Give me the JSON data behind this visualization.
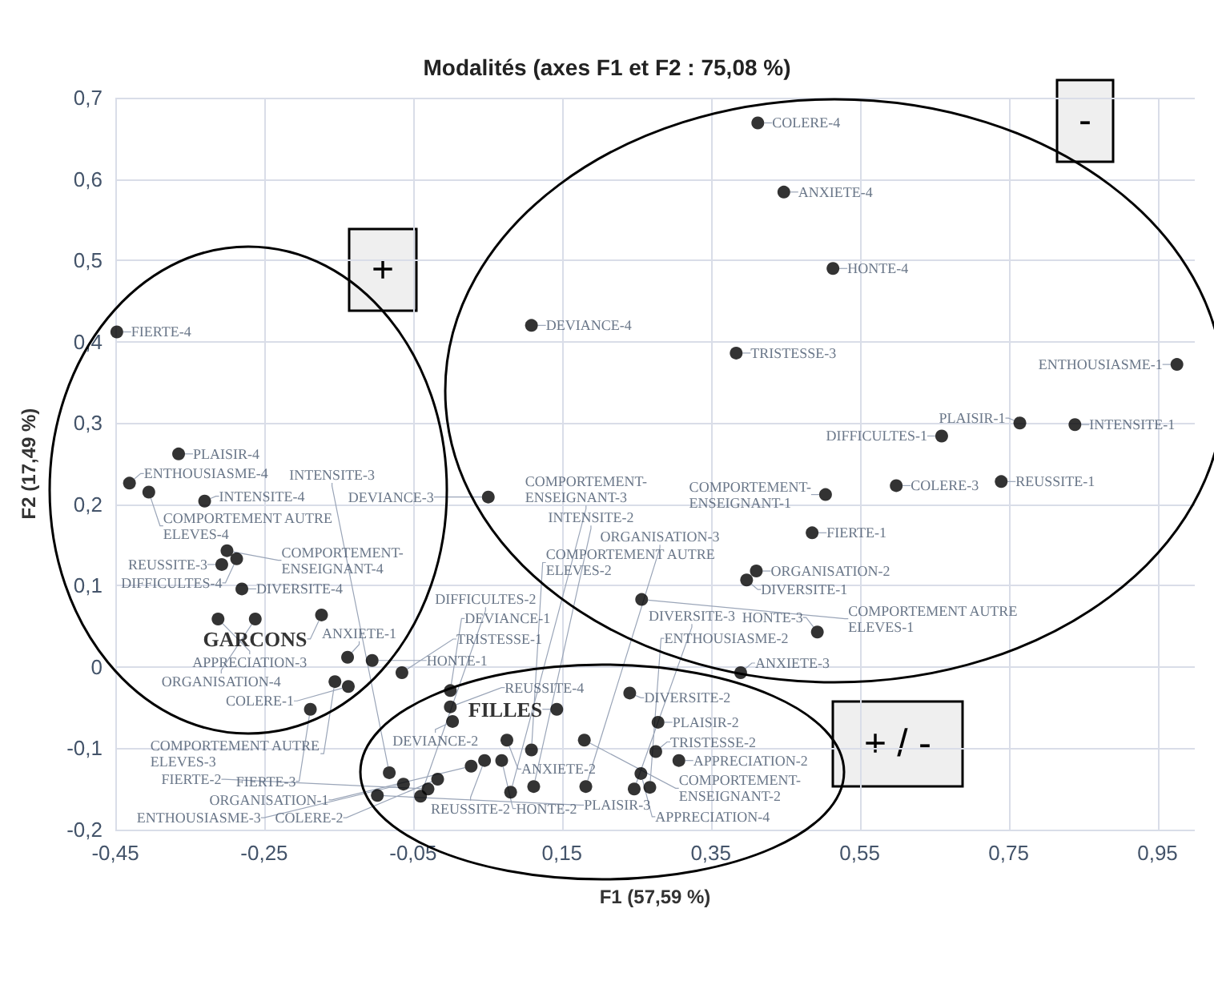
{
  "chart_data": {
    "type": "scatter",
    "title": "Modalités (axes F1 et F2 : 75,08 %)",
    "xlabel": "F1 (57,59 %)",
    "ylabel": "F2 (17,49 %)",
    "xlim": [
      -0.45,
      1.0
    ],
    "ylim": [
      -0.2,
      0.7
    ],
    "xticks": [
      {
        "value": -0.45,
        "label": "-0,45"
      },
      {
        "value": -0.25,
        "label": "-0,25"
      },
      {
        "value": -0.05,
        "label": "-0,05"
      },
      {
        "value": 0.15,
        "label": "0,15"
      },
      {
        "value": 0.35,
        "label": "0,35"
      },
      {
        "value": 0.55,
        "label": "0,55"
      },
      {
        "value": 0.75,
        "label": "0,75"
      },
      {
        "value": 0.95,
        "label": "0,95"
      }
    ],
    "yticks": [
      {
        "value": -0.2,
        "label": "-0,2"
      },
      {
        "value": -0.1,
        "label": "-0,1"
      },
      0,
      {
        "value": 0.1,
        "label": "0,1"
      },
      {
        "value": 0.2,
        "label": "0,2"
      },
      {
        "value": 0.3,
        "label": "0,3"
      },
      {
        "value": 0.4,
        "label": "0,4"
      },
      {
        "value": 0.5,
        "label": "0,5"
      },
      {
        "value": 0.6,
        "label": "0,6"
      },
      {
        "value": 0.7,
        "label": "0,7"
      }
    ],
    "grid": true,
    "marker": "circle",
    "series": [
      {
        "type": "scatter",
        "color": "#000000",
        "x": [
          -0.448,
          -0.365,
          -0.431,
          -0.405,
          -0.33,
          -0.3,
          -0.287,
          -0.307,
          -0.28,
          -0.312,
          -0.262,
          -0.138,
          -0.105,
          -0.065,
          -0.155,
          -0.137,
          -0.188,
          0.0,
          0.0,
          0.003,
          0.241,
          0.39,
          0.279,
          0.076,
          0.18,
          0.109,
          0.069,
          0.046,
          0.028,
          0.276,
          0.307,
          0.256,
          0.268,
          0.247,
          0.182,
          0.112,
          0.081,
          -0.017,
          -0.03,
          -0.04,
          -0.063,
          -0.082,
          -0.098,
          0.413,
          0.448,
          0.514,
          0.109,
          0.384,
          0.976,
          0.765,
          0.839,
          0.66,
          0.74,
          0.599,
          0.504,
          0.051,
          0.486,
          0.411,
          0.398,
          0.257,
          0.493
        ],
        "values": [
          0.412,
          0.262,
          0.226,
          0.215,
          0.204,
          0.143,
          0.133,
          0.126,
          0.096,
          0.059,
          0.059,
          0.012,
          0.008,
          -0.007,
          -0.018,
          -0.024,
          -0.052,
          -0.029,
          -0.049,
          -0.067,
          -0.032,
          -0.007,
          -0.068,
          -0.09,
          -0.09,
          -0.102,
          -0.115,
          -0.115,
          -0.122,
          -0.104,
          -0.115,
          -0.131,
          -0.148,
          -0.15,
          -0.147,
          -0.147,
          -0.154,
          -0.138,
          -0.15,
          -0.159,
          -0.144,
          -0.13,
          -0.158,
          0.669,
          0.584,
          0.49,
          0.42,
          0.386,
          0.372,
          0.3,
          0.298,
          0.284,
          0.228,
          0.223,
          0.212,
          0.209,
          0.165,
          0.118,
          0.107,
          0.083,
          0.043
        ],
        "value_labels": [
          "FIERTE-4",
          "PLAISIR-4",
          "ENTHOUSIASME-4",
          "COMPORTEMENT AUTRE\nELEVES-4",
          "INTENSITE-4",
          "COMPORTEMENT-\nENSEIGNANT-4",
          "DIFFICULTES-4",
          "REUSSITE-3",
          "DIVERSITE-4",
          "APPRECIATION-3",
          "ORGANISATION-4",
          "ANXIETE-1",
          "HONTE-1",
          "TRISTESSE-1",
          "COMPORTEMENT AUTRE\nELEVES-3",
          "COLERE-1",
          "FIERTE-3",
          "DEVIANCE-1",
          "REUSSITE-4",
          "DEVIANCE-2",
          "DIVERSITE-2",
          "ANXIETE-3",
          "PLAISIR-2",
          "ANXIETE-2",
          "COMPORTEMENT-\nENSEIGNANT-2",
          "COMPORTEMENT AUTRE\nELEVES-2",
          "HONTE-2",
          "REUSSITE-2",
          "ORGANISATION-1",
          "TRISTESSE-2",
          "APPRECIATION-2",
          "APPRECIATION-4",
          "ENTHOUSIASME-2",
          "DIVERSITE-3",
          "ORGANISATION-3",
          "INTENSITE-2",
          "COMPORTEMENT-\nENSEIGNANT-3",
          "COLERE-2",
          "FIERTE-2",
          "DIFFICULTES-2",
          "ENTHOUSIASME-3",
          "INTENSITE-3",
          "PLAISIR-3",
          "COLERE-4",
          "ANXIETE-4",
          "HONTE-4",
          "DEVIANCE-4",
          "TRISTESSE-3",
          "ENTHOUSIASME-1",
          "PLAISIR-1",
          "INTENSITE-1",
          "DIFFICULTES-1",
          "REUSSITE-1",
          "COLERE-3",
          "COMPORTEMENT-\nENSEIGNANT-1",
          "DEVIANCE-3",
          "FIERTE-1",
          "ORGANISATION-2",
          "DIVERSITE-1",
          "COMPORTEMENT AUTRE\nELEVES-1",
          "HONTE-3"
        ]
      },
      {
        "type": "scatter",
        "color": "#000000",
        "x": [
          -0.173,
          0.143
        ],
        "values": [
          0.064,
          -0.052
        ],
        "value_labels": [
          "GARCONS",
          "FILLES"
        ]
      }
    ],
    "annotations": [
      "+",
      "-",
      "+ / -"
    ]
  }
}
